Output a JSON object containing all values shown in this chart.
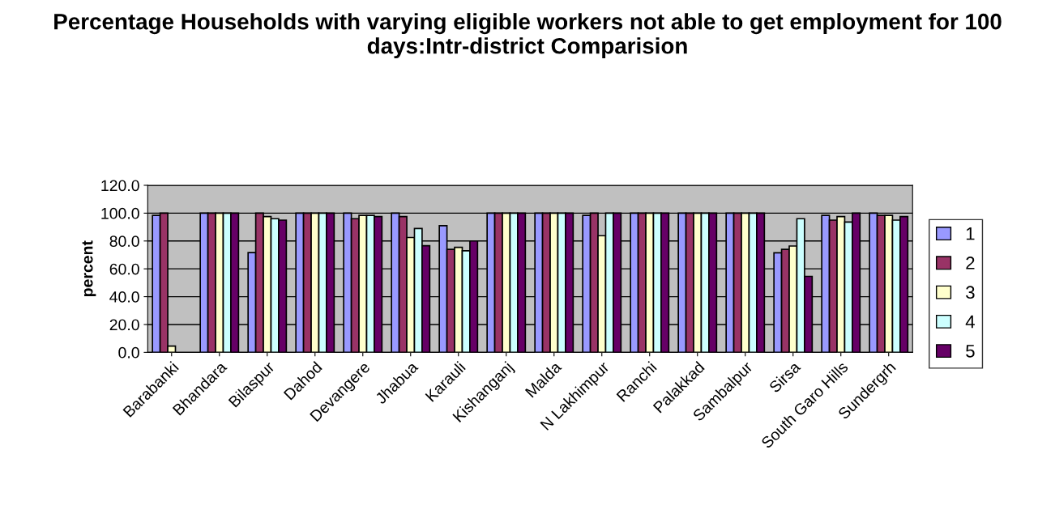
{
  "chart_data": {
    "type": "bar",
    "title": "Percentage Households with varying eligible workers not able to get employment for 100 days:Intr-district Comparision",
    "ylabel": "percent",
    "categories": [
      "Barabanki",
      "Bhandara",
      "Bilaspur",
      "Dahod",
      "Devangere",
      "Jhabua",
      "Karauli",
      "Kishanganj",
      "Malda",
      "N Lakhimpur",
      "Ranchi",
      "Palakkad",
      "Sambalpur",
      "Sirsa",
      "South Garo Hills",
      "Sundergrh"
    ],
    "series": [
      {
        "name": "1",
        "color": "#9999ff",
        "values": [
          98.4,
          100,
          71.7,
          100,
          100,
          100,
          91,
          100,
          100,
          98.4,
          100,
          100,
          100,
          71.5,
          98.4,
          100
        ]
      },
      {
        "name": "2",
        "color": "#993366",
        "values": [
          100,
          100,
          100,
          100,
          96,
          97.5,
          74,
          100,
          100,
          100,
          100,
          100,
          100,
          74,
          95,
          98.4
        ]
      },
      {
        "name": "3",
        "color": "#ffffcc",
        "values": [
          4.5,
          100,
          97.5,
          100,
          98.4,
          82.5,
          75.4,
          100,
          100,
          83.8,
          100,
          100,
          100,
          76.4,
          97.5,
          98.4
        ]
      },
      {
        "name": "4",
        "color": "#ccffff",
        "values": [
          null,
          100,
          96,
          100,
          98.4,
          89,
          73,
          100,
          100,
          100,
          100,
          100,
          100,
          96,
          93.6,
          95
        ]
      },
      {
        "name": "5",
        "color": "#660066",
        "values": [
          null,
          100,
          95,
          100,
          97.5,
          76.6,
          80,
          100,
          100,
          100,
          100,
          100,
          100,
          54.6,
          100,
          97.5
        ]
      }
    ],
    "ylim": [
      0,
      120
    ],
    "yticks": [
      {
        "value": 0,
        "label": "0.0"
      },
      {
        "value": 20,
        "label": "20.0"
      },
      {
        "value": 40,
        "label": "40.0"
      },
      {
        "value": 60,
        "label": "60.0"
      },
      {
        "value": 80,
        "label": "80.0"
      },
      {
        "value": 100,
        "label": "100.0"
      },
      {
        "value": 120,
        "label": "120.0"
      }
    ],
    "grid": "y",
    "legend": "right"
  }
}
